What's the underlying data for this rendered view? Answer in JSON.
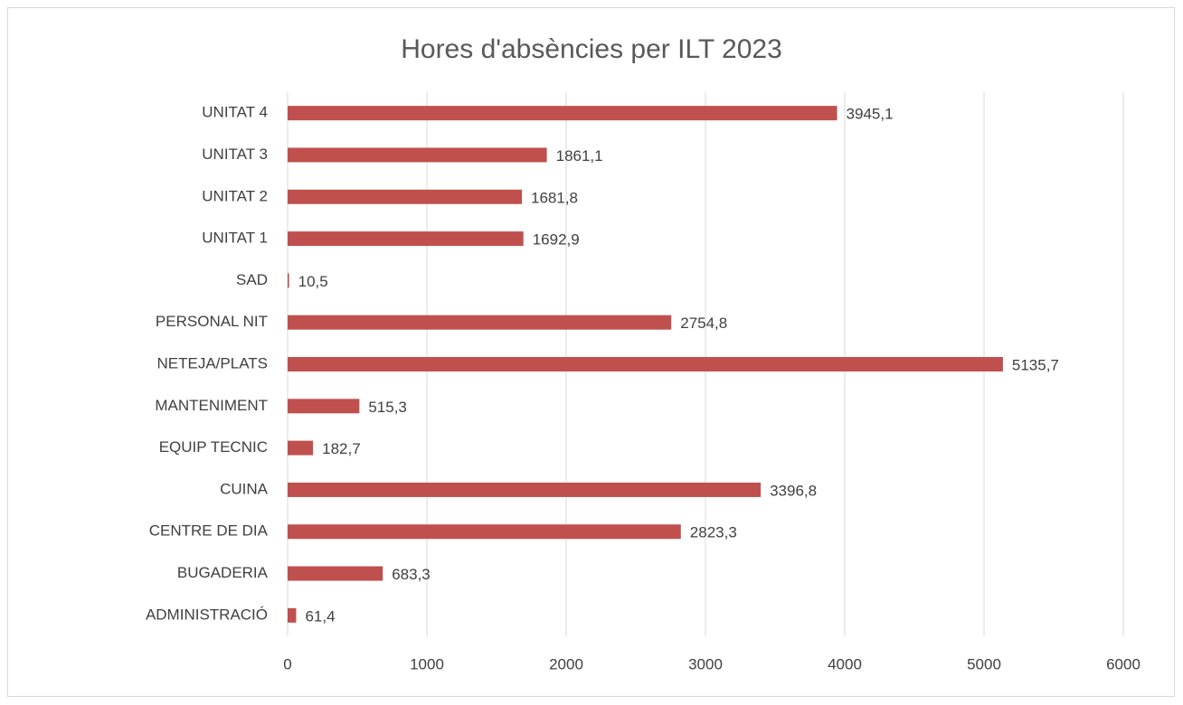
{
  "chart_data": {
    "type": "bar",
    "orientation": "horizontal",
    "title": "Hores d'absències per ILT 2023",
    "categories": [
      "ADMINISTRACIÓ",
      "BUGADERIA",
      "CENTRE DE DIA",
      "CUINA",
      "EQUIP TECNIC",
      "MANTENIMENT",
      "NETEJA/PLATS",
      "PERSONAL NIT",
      "SAD",
      "UNITAT 1",
      "UNITAT 2",
      "UNITAT 3",
      "UNITAT 4"
    ],
    "values": [
      61.4,
      683.3,
      2823.3,
      3396.8,
      182.7,
      515.3,
      5135.7,
      2754.8,
      10.5,
      1692.9,
      1681.8,
      1861.1,
      3945.1
    ],
    "value_labels": [
      "61,4",
      "683,3",
      "2823,3",
      "3396,8",
      "182,7",
      "515,3",
      "5135,7",
      "2754,8",
      "10,5",
      "1692,9",
      "1681,8",
      "1861,1",
      "3945,1"
    ],
    "color": "#c0504d",
    "xlim": [
      0,
      6000
    ],
    "xticks": [
      0,
      1000,
      2000,
      3000,
      4000,
      5000,
      6000
    ],
    "grid": true
  }
}
